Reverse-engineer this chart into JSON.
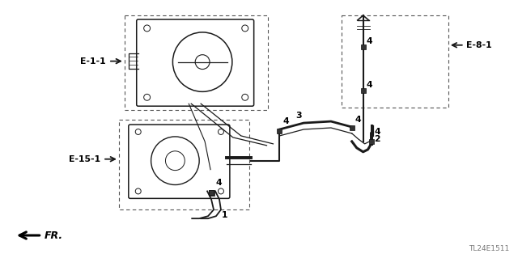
{
  "bg_color": "#ffffff",
  "lc": "#1a1a1a",
  "dc": "#555555",
  "tc": "#000000",
  "label_E11": "E-1-1",
  "label_E151": "E-15-1",
  "label_E81": "E-8-1",
  "label_FR": "FR.",
  "diagram_id": "TL24E1511",
  "figsize": [
    6.4,
    3.19
  ],
  "dpi": 100
}
